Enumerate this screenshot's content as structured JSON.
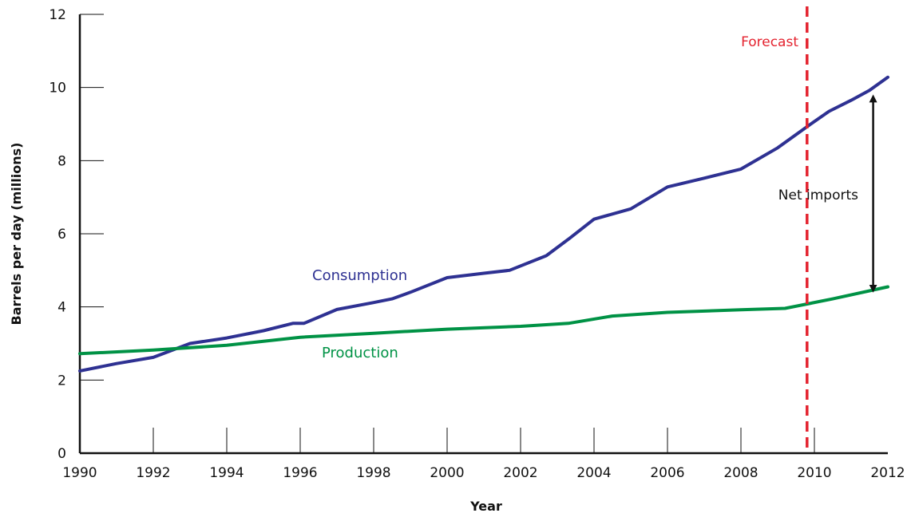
{
  "chart_data": {
    "type": "line",
    "xlabel": "Year",
    "ylabel": "Barrels per day (millions)",
    "xlim": [
      1990,
      2012
    ],
    "ylim": [
      0,
      12
    ],
    "x_ticks": [
      1990,
      1992,
      1994,
      1996,
      1998,
      2000,
      2002,
      2004,
      2006,
      2008,
      2010,
      2012
    ],
    "y_ticks": [
      0,
      2,
      4,
      6,
      8,
      10,
      12
    ],
    "grid": false,
    "series": [
      {
        "name": "Consumption",
        "color": "#2e3192",
        "points": [
          [
            1990,
            2.25
          ],
          [
            1991,
            2.45
          ],
          [
            1992,
            2.62
          ],
          [
            1993,
            3.0
          ],
          [
            1994,
            3.15
          ],
          [
            1995,
            3.35
          ],
          [
            1995.8,
            3.55
          ],
          [
            1996.1,
            3.55
          ],
          [
            1997,
            3.93
          ],
          [
            1998,
            4.12
          ],
          [
            1998.5,
            4.22
          ],
          [
            1999,
            4.4
          ],
          [
            2000,
            4.8
          ],
          [
            2001,
            4.92
          ],
          [
            2001.7,
            5.0
          ],
          [
            2002.7,
            5.4
          ],
          [
            2003.3,
            5.85
          ],
          [
            2004,
            6.4
          ],
          [
            2005,
            6.68
          ],
          [
            2006,
            7.28
          ],
          [
            2007,
            7.52
          ],
          [
            2008,
            7.77
          ],
          [
            2009,
            8.35
          ],
          [
            2009.9,
            9.0
          ],
          [
            2010.4,
            9.35
          ],
          [
            2011,
            9.65
          ],
          [
            2011.5,
            9.92
          ],
          [
            2012,
            10.28
          ]
        ]
      },
      {
        "name": "Production",
        "color": "#009245",
        "points": [
          [
            1990,
            2.72
          ],
          [
            1992,
            2.82
          ],
          [
            1994,
            2.95
          ],
          [
            1996,
            3.17
          ],
          [
            1998,
            3.28
          ],
          [
            2000,
            3.39
          ],
          [
            2002,
            3.47
          ],
          [
            2003.3,
            3.55
          ],
          [
            2004.5,
            3.75
          ],
          [
            2006,
            3.85
          ],
          [
            2008,
            3.92
          ],
          [
            2009.2,
            3.96
          ],
          [
            2010.5,
            4.22
          ],
          [
            2012,
            4.55
          ]
        ]
      }
    ],
    "forecast": {
      "label": "Forecast",
      "x": 2009.8,
      "color": "#e4232f"
    },
    "annotation": {
      "label": "Net imports",
      "x": 2011.6,
      "y_from": 4.5,
      "y_to": 9.7
    }
  }
}
